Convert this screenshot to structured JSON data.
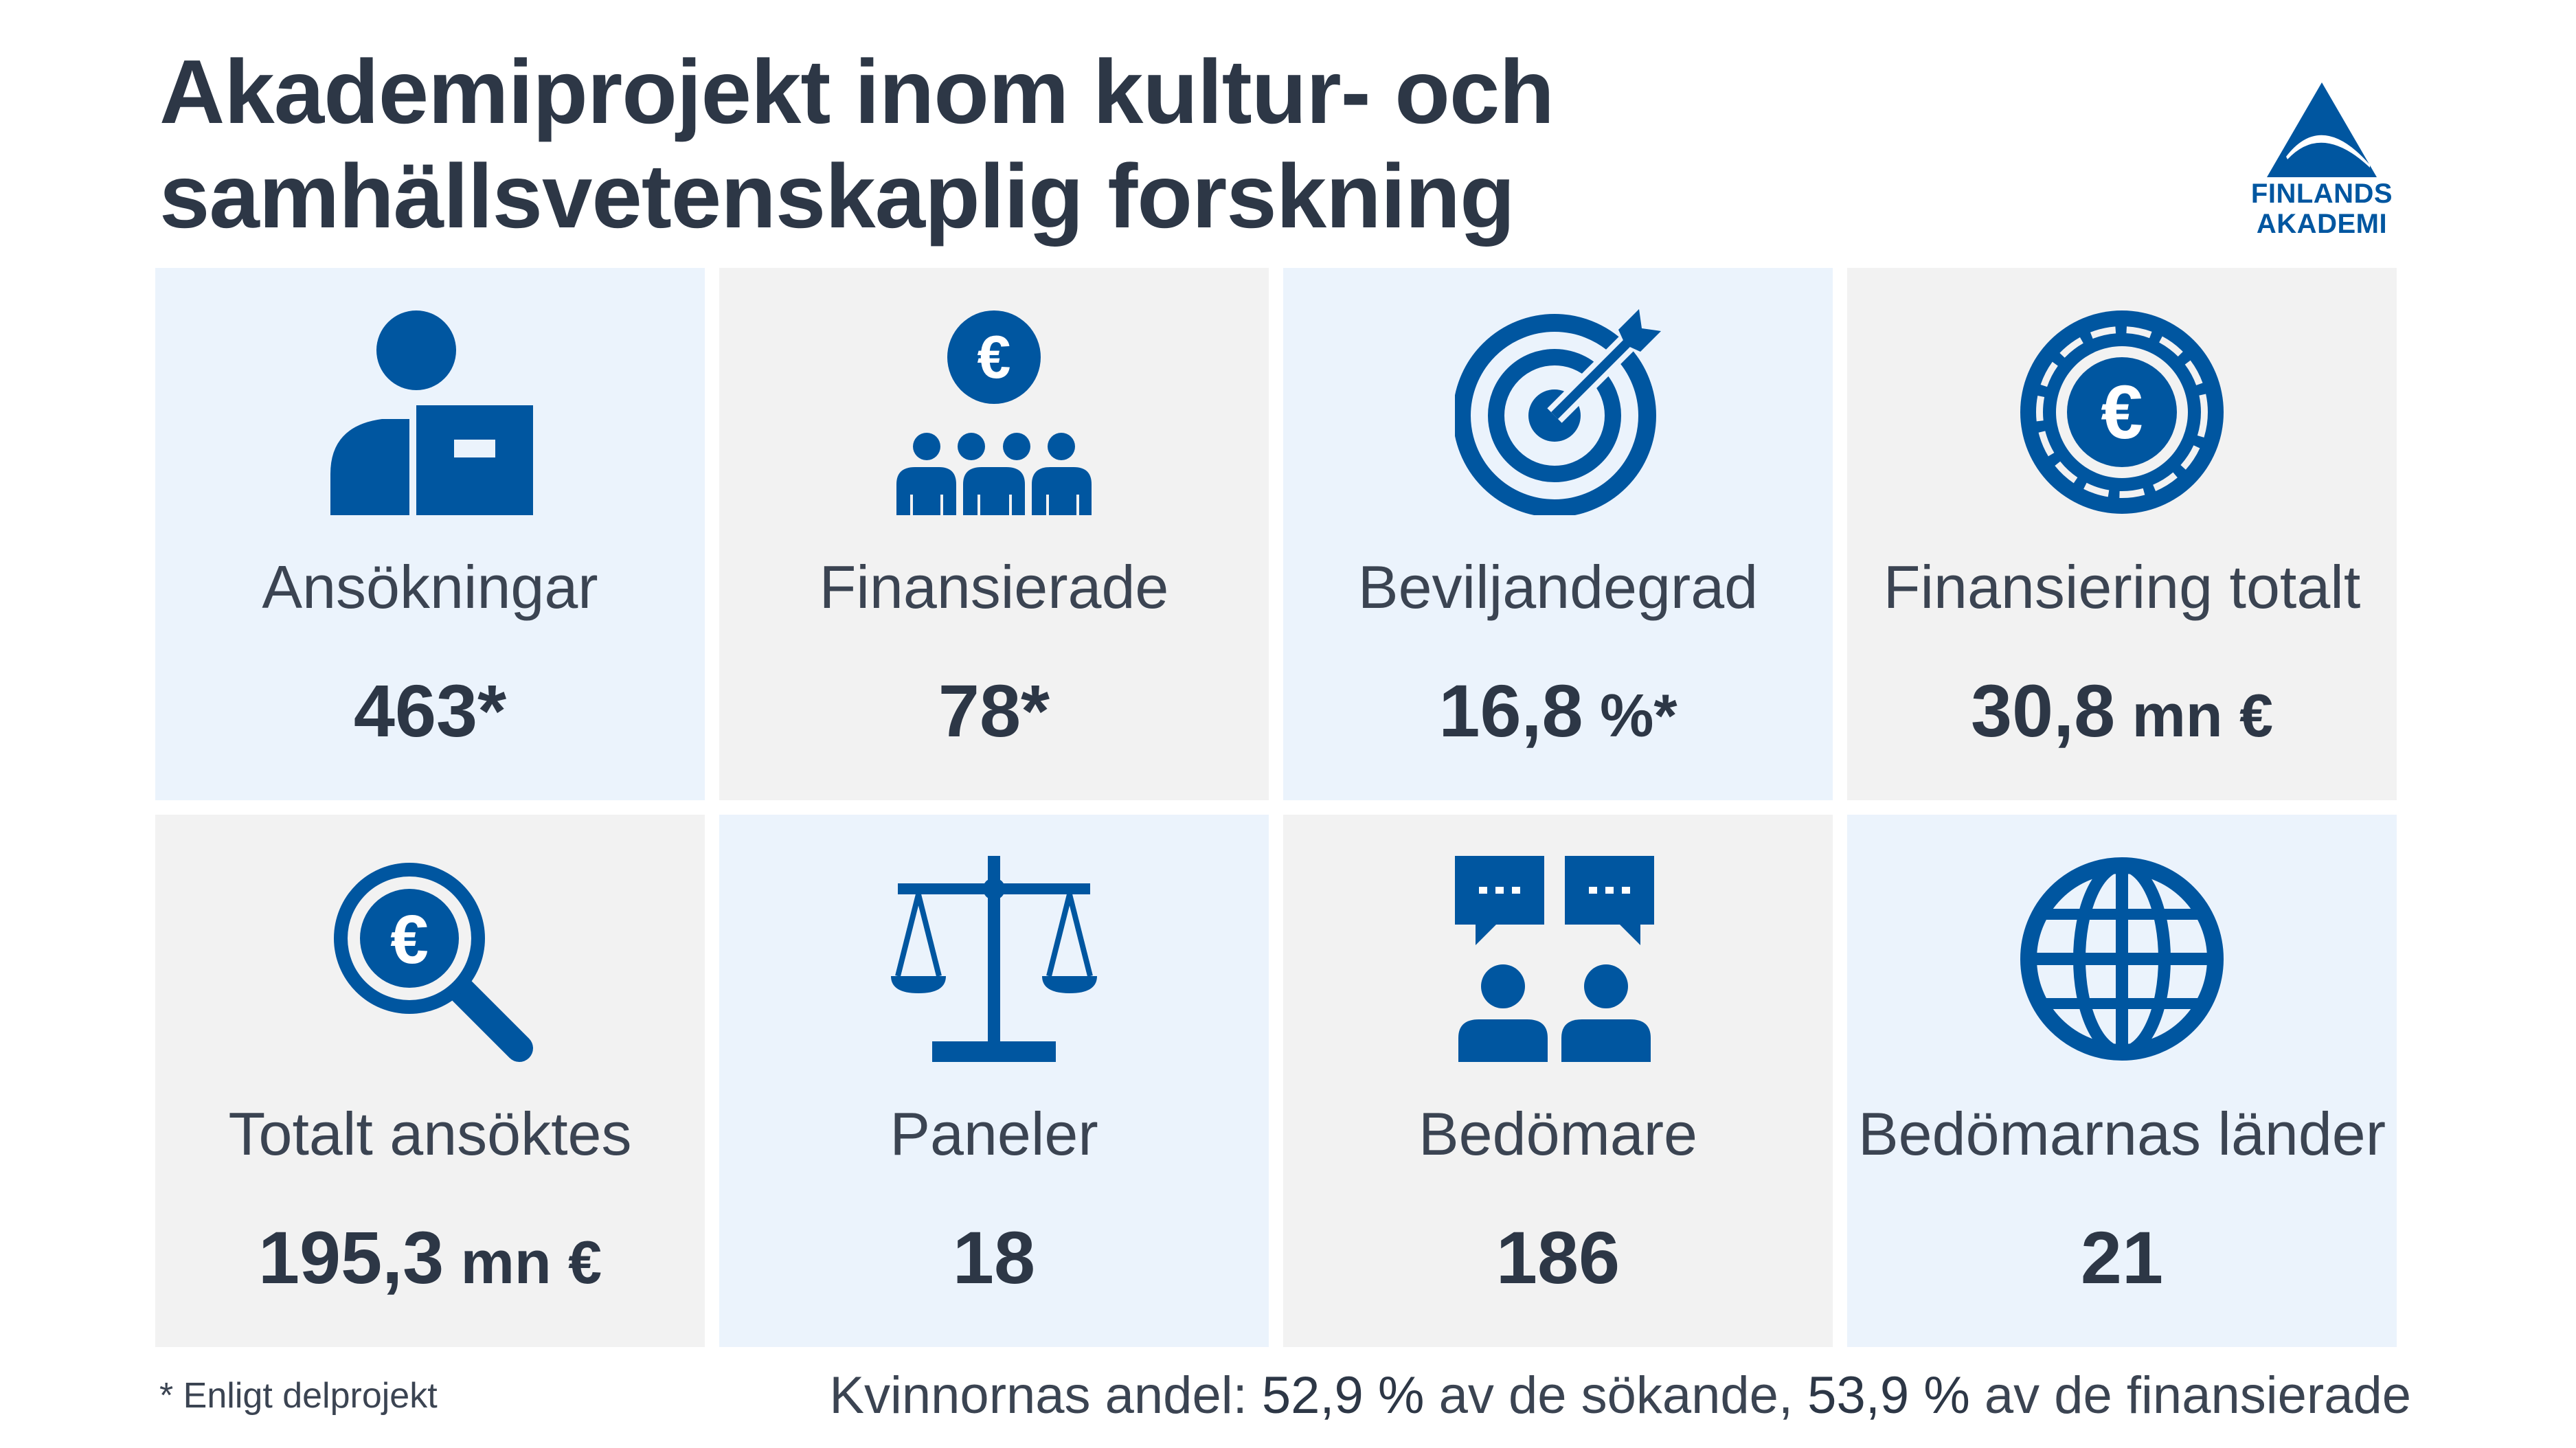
{
  "title": {
    "line1": "Akademiprojekt inom kultur- och",
    "line2": "samhällsvetenskaplig forskning"
  },
  "logo": {
    "line1": "FINLANDS",
    "line2": "AKADEMI",
    "color": "#0056a0"
  },
  "colors": {
    "accent": "#0056a0",
    "text": "#2d3746",
    "tile_blue": "#ebf3fc",
    "tile_gray": "#f2f2f2"
  },
  "tiles": [
    {
      "icon": "applicant-icon",
      "label": "Ansökningar",
      "value": "463*",
      "unit": ""
    },
    {
      "icon": "funded-group-icon",
      "label": "Finansierade",
      "value": "78*",
      "unit": ""
    },
    {
      "icon": "target-icon",
      "label": "Beviljandegrad",
      "value": "16,8",
      "unit": " %*"
    },
    {
      "icon": "euro-coin-icon",
      "label": "Finansiering totalt",
      "value": "30,8",
      "unit": " mn €"
    },
    {
      "icon": "euro-search-icon",
      "label": "Totalt ansöktes",
      "value": "195,3",
      "unit": " mn €"
    },
    {
      "icon": "scales-icon",
      "label": "Paneler",
      "value": "18",
      "unit": ""
    },
    {
      "icon": "reviewers-chat-icon",
      "label": "Bedömare",
      "value": "186",
      "unit": ""
    },
    {
      "icon": "globe-icon",
      "label": "Bedömarnas länder",
      "value": "21",
      "unit": ""
    }
  ],
  "footnote": "* Enligt delprojekt",
  "women_share": {
    "prefix": "Kvinnornas andel: ",
    "applicants_value": "52,9 %",
    "applicants_text": " av de sökande, ",
    "funded_value": "53,9 %",
    "funded_text": " av de finansierade"
  }
}
